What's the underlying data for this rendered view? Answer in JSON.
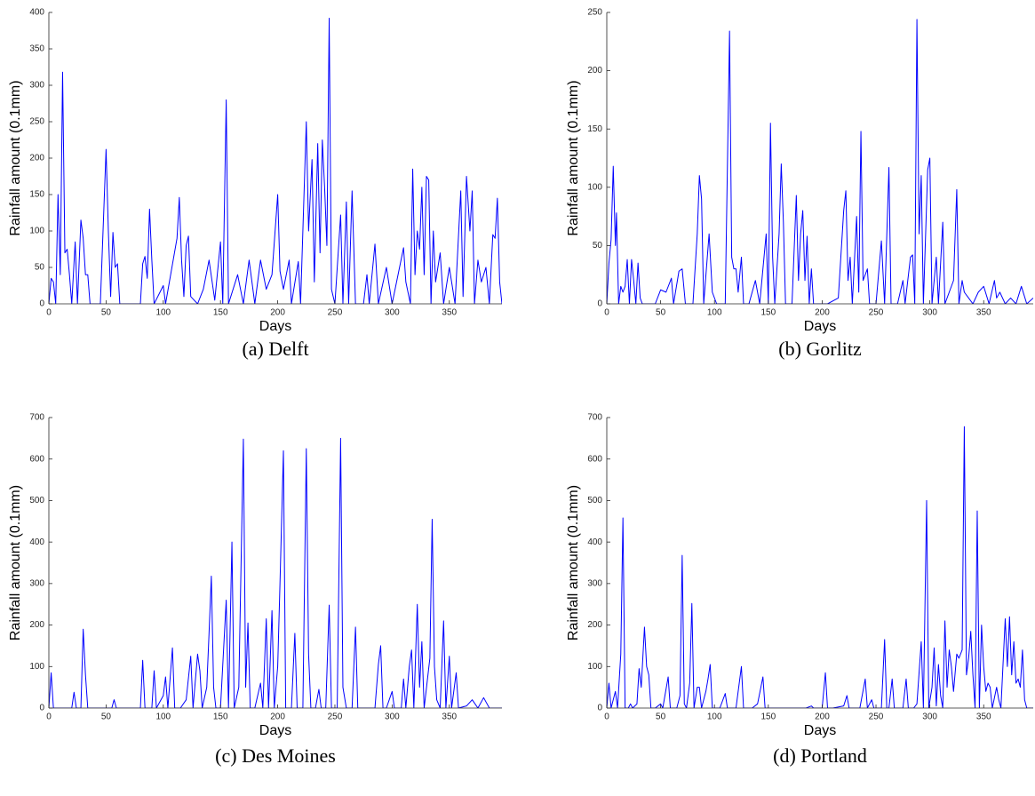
{
  "chart_data": [
    {
      "type": "line",
      "caption": "(a) Delft",
      "xlabel": "Days",
      "ylabel": "Rainfall amount (0.1mm)",
      "color": "#0000ff",
      "xlim": [
        0,
        396
      ],
      "ylim": [
        0,
        400
      ],
      "xticks": [
        0,
        50,
        100,
        150,
        200,
        250,
        300,
        350
      ],
      "yticks": [
        0,
        50,
        100,
        150,
        200,
        250,
        300,
        350,
        400
      ],
      "x": [
        0,
        2,
        4,
        6,
        8,
        10,
        12,
        14,
        16,
        18,
        20,
        23,
        25,
        28,
        30,
        32,
        34,
        36,
        45,
        50,
        52,
        54,
        56,
        58,
        60,
        62,
        80,
        82,
        84,
        86,
        88,
        90,
        92,
        100,
        102,
        112,
        114,
        116,
        118,
        120,
        122,
        124,
        130,
        135,
        140,
        145,
        150,
        152,
        155,
        157,
        165,
        170,
        175,
        180,
        185,
        190,
        195,
        200,
        202,
        205,
        210,
        212,
        218,
        220,
        225,
        227,
        230,
        232,
        235,
        237,
        239,
        241,
        243,
        245,
        247,
        250,
        255,
        257,
        260,
        262,
        265,
        268,
        275,
        278,
        280,
        285,
        288,
        295,
        300,
        310,
        312,
        316,
        318,
        320,
        322,
        324,
        326,
        328,
        330,
        332,
        334,
        336,
        338,
        342,
        345,
        350,
        355,
        360,
        362,
        365,
        368,
        370,
        372,
        375,
        378,
        382,
        385,
        388,
        390,
        392,
        394,
        396
      ],
      "values": [
        0,
        35,
        30,
        0,
        150,
        40,
        318,
        70,
        75,
        40,
        0,
        85,
        0,
        115,
        90,
        40,
        40,
        0,
        0,
        212,
        100,
        10,
        98,
        50,
        55,
        0,
        0,
        55,
        65,
        35,
        130,
        60,
        0,
        25,
        0,
        90,
        146,
        60,
        10,
        80,
        93,
        10,
        0,
        20,
        60,
        5,
        85,
        0,
        280,
        0,
        40,
        0,
        60,
        0,
        60,
        20,
        40,
        150,
        45,
        20,
        60,
        0,
        58,
        0,
        250,
        100,
        198,
        30,
        220,
        70,
        225,
        160,
        80,
        392,
        20,
        0,
        122,
        0,
        140,
        0,
        155,
        0,
        0,
        40,
        0,
        82,
        0,
        50,
        0,
        77,
        30,
        0,
        185,
        40,
        100,
        75,
        160,
        40,
        175,
        170,
        0,
        100,
        30,
        70,
        0,
        50,
        0,
        155,
        10,
        175,
        100,
        155,
        0,
        60,
        30,
        50,
        0,
        95,
        90,
        145,
        30,
        0
      ]
    },
    {
      "type": "line",
      "caption": "(b) Gorlitz",
      "xlabel": "Days",
      "ylabel": "Rainfall amount (0.1mm)",
      "color": "#0000ff",
      "xlim": [
        0,
        396
      ],
      "ylim": [
        0,
        250
      ],
      "xticks": [
        0,
        50,
        100,
        150,
        200,
        250,
        300,
        350
      ],
      "yticks": [
        0,
        50,
        100,
        150,
        200,
        250
      ],
      "x": [
        0,
        2,
        4,
        6,
        8,
        9,
        11,
        13,
        15,
        17,
        19,
        21,
        23,
        25,
        27,
        29,
        31,
        33,
        45,
        50,
        55,
        60,
        62,
        67,
        70,
        73,
        80,
        84,
        86,
        88,
        90,
        95,
        98,
        102,
        110,
        114,
        116,
        118,
        120,
        122,
        125,
        127,
        132,
        138,
        142,
        148,
        150,
        152,
        154,
        156,
        160,
        162,
        164,
        166,
        172,
        176,
        178,
        180,
        182,
        184,
        186,
        188,
        190,
        192,
        205,
        215,
        220,
        222,
        224,
        226,
        228,
        232,
        234,
        236,
        238,
        240,
        242,
        244,
        250,
        255,
        258,
        262,
        264,
        270,
        275,
        277,
        282,
        284,
        286,
        288,
        290,
        292,
        294,
        298,
        300,
        302,
        306,
        308,
        312,
        314,
        318,
        322,
        325,
        327,
        330,
        332,
        336,
        340,
        345,
        350,
        355,
        360,
        362,
        365,
        370,
        375,
        380,
        385,
        390,
        396
      ],
      "values": [
        0,
        35,
        55,
        118,
        50,
        78,
        0,
        15,
        10,
        15,
        38,
        0,
        38,
        20,
        0,
        35,
        5,
        0,
        0,
        12,
        10,
        22,
        0,
        28,
        30,
        0,
        0,
        60,
        110,
        90,
        0,
        60,
        10,
        0,
        0,
        234,
        40,
        30,
        30,
        10,
        40,
        0,
        0,
        20,
        0,
        60,
        0,
        155,
        40,
        0,
        60,
        120,
        70,
        0,
        0,
        93,
        20,
        60,
        80,
        20,
        58,
        0,
        30,
        0,
        0,
        5,
        80,
        97,
        20,
        40,
        0,
        75,
        10,
        148,
        20,
        25,
        30,
        0,
        0,
        54,
        0,
        117,
        0,
        0,
        20,
        0,
        40,
        42,
        0,
        244,
        60,
        110,
        0,
        115,
        125,
        0,
        40,
        0,
        70,
        0,
        10,
        20,
        98,
        0,
        20,
        10,
        5,
        0,
        10,
        15,
        0,
        20,
        5,
        10,
        0,
        5,
        0,
        15,
        0,
        5
      ]
    },
    {
      "type": "line",
      "caption": "(c) Des Moines",
      "xlabel": "Days",
      "ylabel": "Rainfall amount (0.1mm)",
      "color": "#0000ff",
      "xlim": [
        0,
        396
      ],
      "ylim": [
        0,
        700
      ],
      "xticks": [
        0,
        50,
        100,
        150,
        200,
        250,
        300,
        350
      ],
      "yticks": [
        0,
        100,
        200,
        300,
        400,
        500,
        600,
        700
      ],
      "x": [
        0,
        2,
        4,
        20,
        22,
        24,
        28,
        30,
        32,
        34,
        55,
        57,
        59,
        80,
        82,
        84,
        90,
        92,
        94,
        100,
        102,
        104,
        108,
        110,
        115,
        120,
        124,
        126,
        130,
        132,
        134,
        138,
        140,
        142,
        144,
        146,
        150,
        155,
        157,
        160,
        162,
        166,
        170,
        172,
        174,
        176,
        180,
        185,
        187,
        190,
        192,
        195,
        197,
        200,
        202,
        205,
        207,
        212,
        215,
        217,
        222,
        225,
        227,
        229,
        233,
        236,
        238,
        242,
        245,
        247,
        252,
        255,
        257,
        260,
        265,
        268,
        270,
        285,
        288,
        290,
        292,
        295,
        300,
        302,
        308,
        310,
        312,
        315,
        317,
        319,
        322,
        324,
        326,
        328,
        333,
        335,
        337,
        339,
        342,
        345,
        347,
        350,
        352,
        356,
        358,
        365,
        370,
        375,
        380,
        385,
        396
      ],
      "values": [
        0,
        85,
        0,
        0,
        38,
        0,
        0,
        190,
        80,
        0,
        0,
        20,
        0,
        0,
        115,
        0,
        0,
        90,
        0,
        30,
        75,
        0,
        145,
        0,
        0,
        20,
        125,
        0,
        130,
        90,
        0,
        50,
        180,
        318,
        50,
        0,
        0,
        260,
        0,
        400,
        0,
        50,
        648,
        50,
        205,
        0,
        0,
        60,
        0,
        215,
        0,
        235,
        0,
        100,
        300,
        620,
        0,
        0,
        180,
        0,
        0,
        625,
        130,
        0,
        0,
        45,
        0,
        0,
        248,
        0,
        0,
        650,
        50,
        0,
        0,
        195,
        0,
        0,
        105,
        150,
        0,
        0,
        40,
        0,
        0,
        70,
        0,
        100,
        140,
        0,
        250,
        50,
        160,
        0,
        120,
        455,
        100,
        20,
        0,
        210,
        0,
        125,
        0,
        85,
        0,
        5,
        20,
        0,
        25,
        0,
        0
      ]
    },
    {
      "type": "line",
      "caption": "(d) Portland",
      "xlabel": "Days",
      "ylabel": "Rainfall amount (0.1mm)",
      "color": "#0000ff",
      "xlim": [
        0,
        396
      ],
      "ylim": [
        0,
        700
      ],
      "xticks": [
        0,
        50,
        100,
        150,
        200,
        250,
        300,
        350
      ],
      "yticks": [
        0,
        100,
        200,
        300,
        400,
        500,
        600,
        700
      ],
      "x": [
        0,
        2,
        4,
        8,
        10,
        13,
        15,
        17,
        20,
        22,
        24,
        28,
        30,
        32,
        35,
        37,
        39,
        41,
        45,
        50,
        52,
        57,
        59,
        65,
        68,
        70,
        72,
        74,
        77,
        79,
        81,
        84,
        86,
        88,
        92,
        94,
        96,
        98,
        105,
        110,
        112,
        120,
        125,
        127,
        135,
        140,
        145,
        147,
        160,
        185,
        190,
        192,
        200,
        203,
        205,
        210,
        220,
        223,
        225,
        235,
        240,
        242,
        244,
        246,
        248,
        255,
        258,
        260,
        262,
        265,
        267,
        275,
        278,
        280,
        285,
        288,
        292,
        294,
        297,
        299,
        302,
        304,
        306,
        308,
        310,
        312,
        314,
        316,
        318,
        320,
        322,
        325,
        327,
        330,
        332,
        334,
        336,
        338,
        340,
        342,
        344,
        346,
        348,
        350,
        352,
        354,
        356,
        358,
        362,
        364,
        366,
        370,
        372,
        374,
        376,
        378,
        380,
        382,
        384,
        386,
        388,
        390,
        396
      ],
      "values": [
        0,
        60,
        0,
        40,
        0,
        130,
        458,
        0,
        0,
        10,
        0,
        10,
        95,
        50,
        195,
        100,
        80,
        0,
        0,
        10,
        0,
        75,
        0,
        0,
        30,
        368,
        10,
        0,
        60,
        252,
        0,
        50,
        50,
        0,
        40,
        70,
        105,
        0,
        0,
        35,
        0,
        0,
        100,
        0,
        0,
        10,
        75,
        0,
        0,
        0,
        5,
        0,
        0,
        85,
        0,
        0,
        5,
        30,
        0,
        0,
        70,
        0,
        10,
        20,
        0,
        0,
        165,
        0,
        0,
        70,
        0,
        0,
        70,
        0,
        0,
        10,
        160,
        0,
        500,
        0,
        50,
        145,
        5,
        105,
        30,
        0,
        210,
        50,
        140,
        100,
        40,
        130,
        120,
        140,
        678,
        80,
        120,
        185,
        80,
        0,
        475,
        0,
        200,
        100,
        40,
        60,
        50,
        0,
        50,
        20,
        0,
        215,
        100,
        220,
        80,
        160,
        60,
        70,
        50,
        140,
        20,
        0,
        0
      ]
    }
  ]
}
